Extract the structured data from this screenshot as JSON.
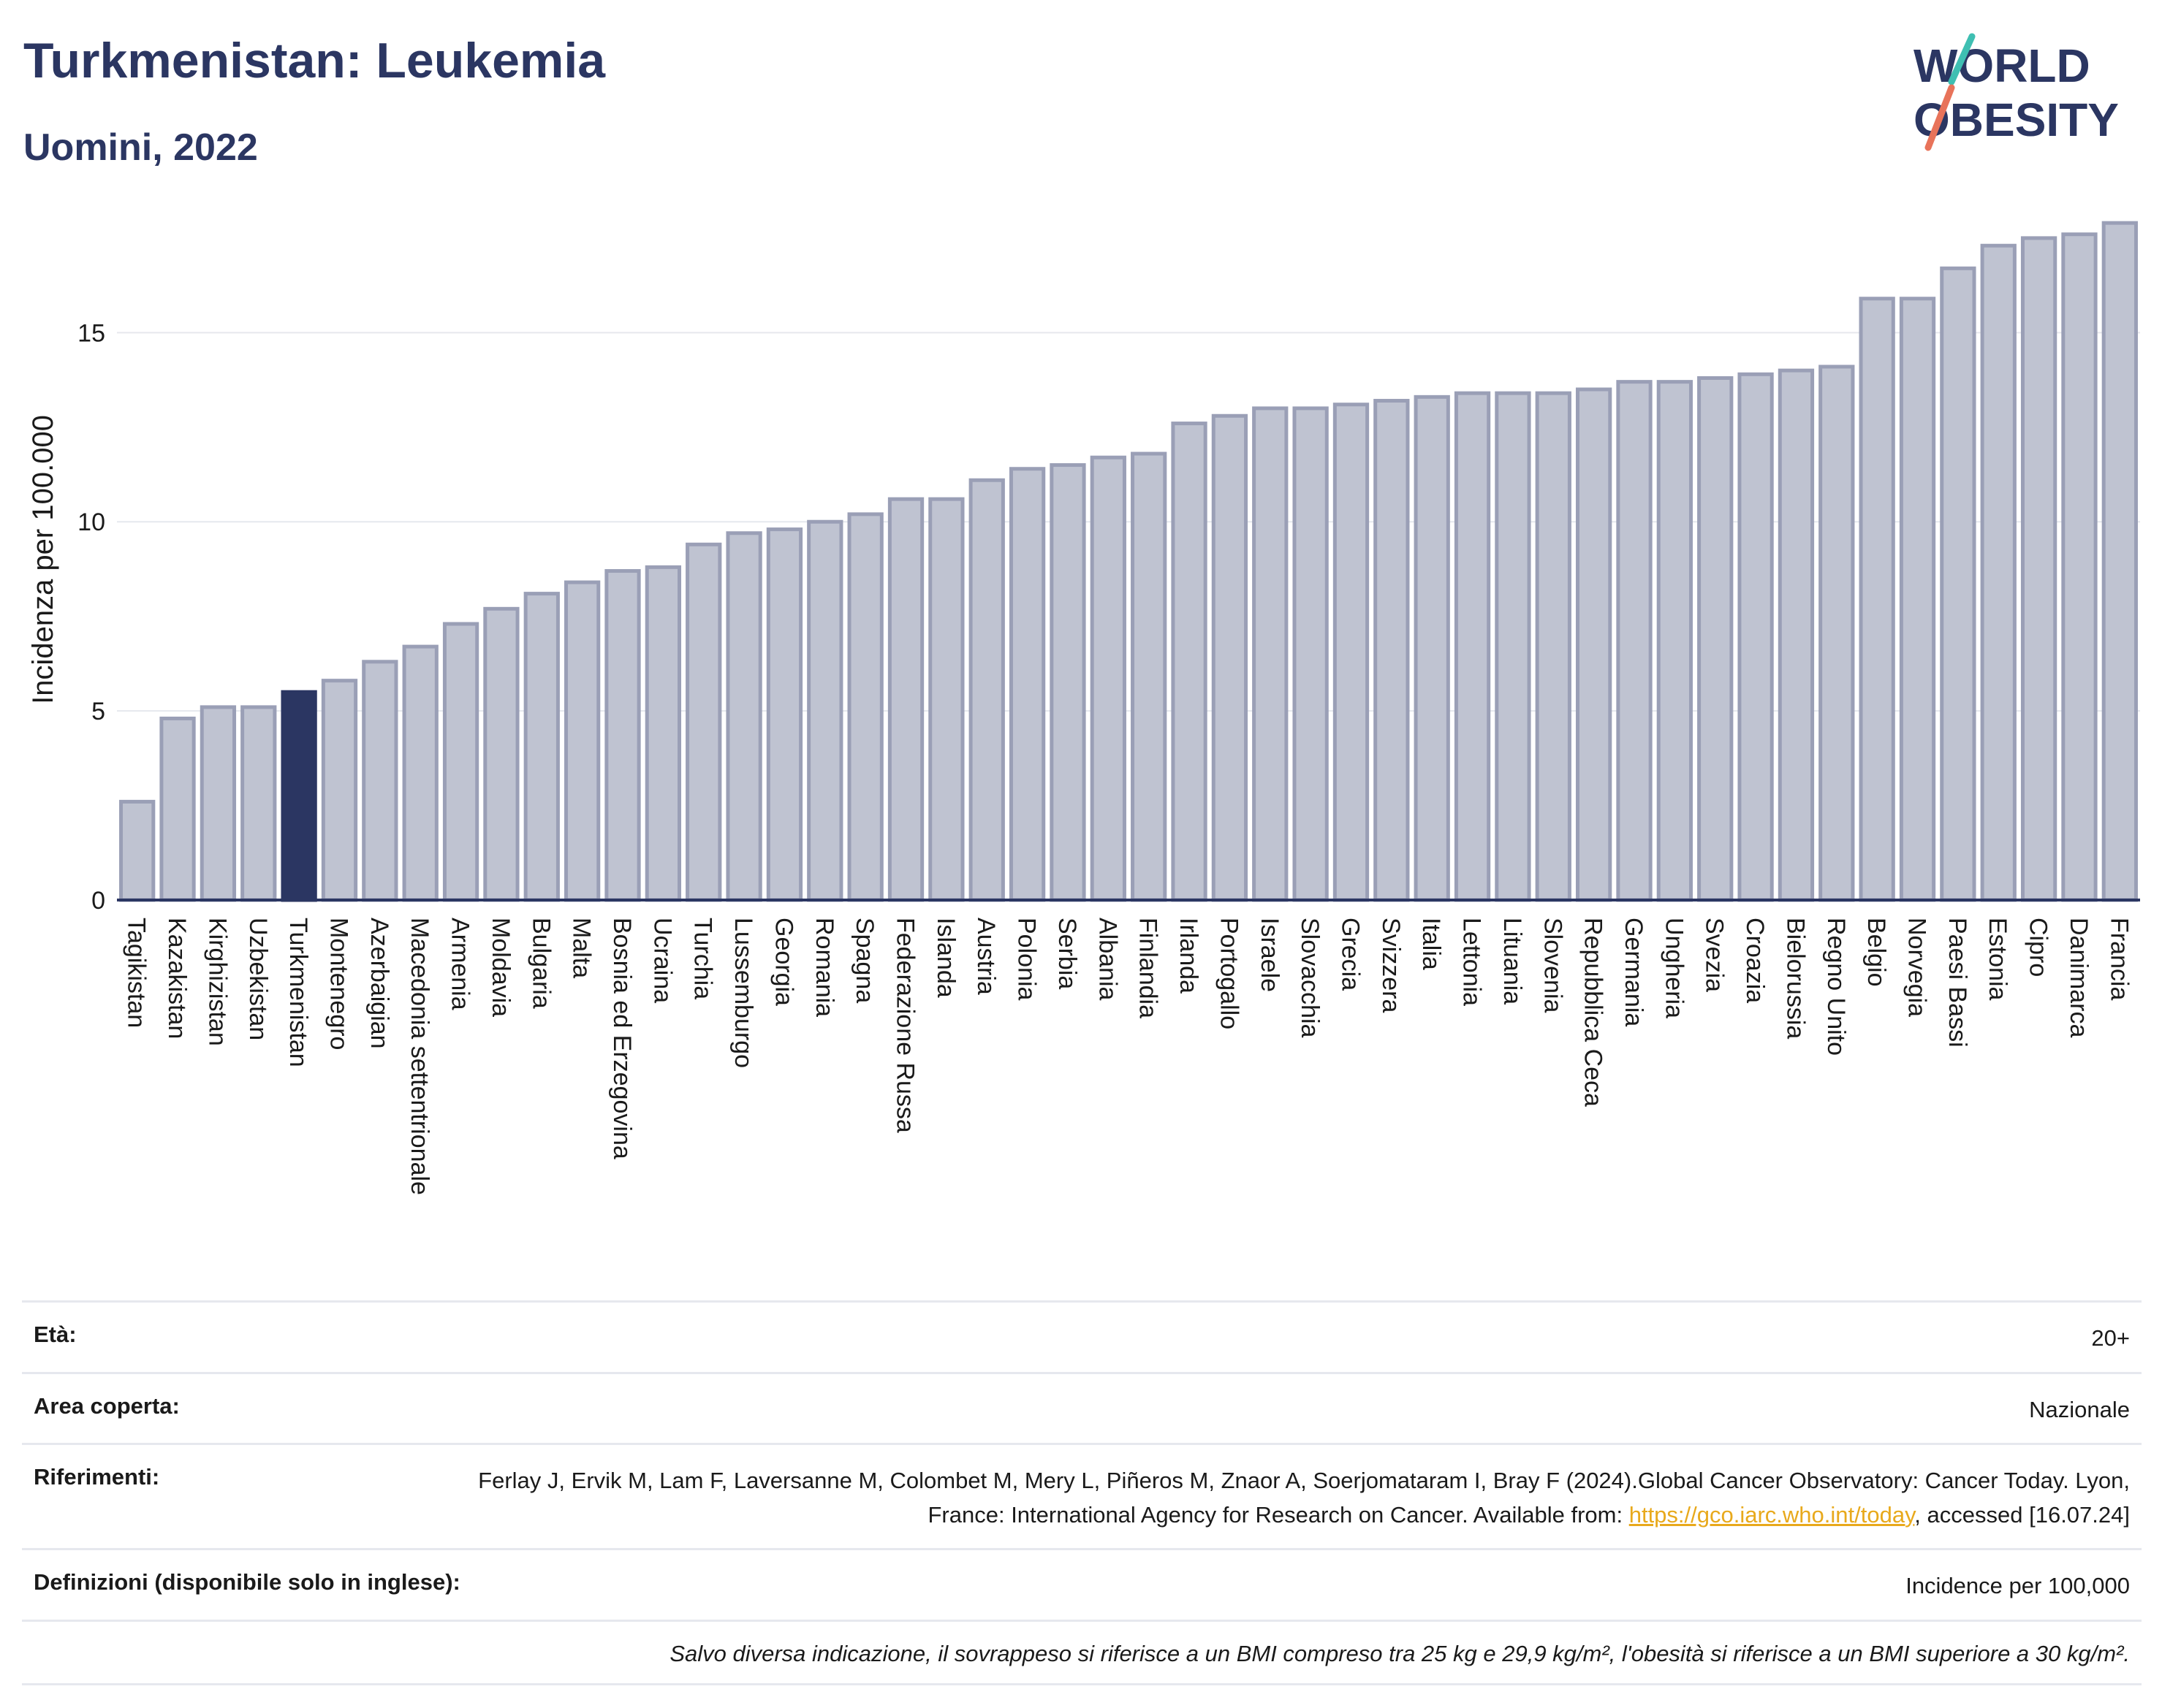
{
  "title": "Turkmenistan: Leukemia",
  "subtitle": "Uomini, 2022",
  "logo": {
    "line1": "WORLD",
    "line2": "OBESITY"
  },
  "colors": {
    "bar": "#bfc3d1",
    "bar_stroke": "#9a9fb6",
    "highlight": "#2b3662",
    "text": "#2b3662",
    "grid": "#e6e8ee",
    "link": "#e8a91c"
  },
  "chart_data": {
    "type": "bar",
    "ylabel": "Incidenza per 100.000",
    "ylim": [
      0,
      18
    ],
    "yticks": [
      0,
      5,
      10,
      15
    ],
    "highlight": "Turkmenistan",
    "grid": true,
    "categories": [
      "Tagikistan",
      "Kazakistan",
      "Kirghizistan",
      "Uzbekistan",
      "Turkmenistan",
      "Montenegro",
      "Azerbaigian",
      "Macedonia settentrionale",
      "Armenia",
      "Moldavia",
      "Bulgaria",
      "Malta",
      "Bosnia ed Erzegovina",
      "Ucraina",
      "Turchia",
      "Lussemburgo",
      "Georgia",
      "Romania",
      "Spagna",
      "Federazione Russa",
      "Islanda",
      "Austria",
      "Polonia",
      "Serbia",
      "Albania",
      "Finlandia",
      "Irlanda",
      "Portogallo",
      "Israele",
      "Slovacchia",
      "Grecia",
      "Svizzera",
      "Italia",
      "Lettonia",
      "Lituania",
      "Slovenia",
      "Repubblica Ceca",
      "Germania",
      "Ungheria",
      "Svezia",
      "Croazia",
      "Bielorussia",
      "Regno Unito",
      "Belgio",
      "Norvegia",
      "Paesi Bassi",
      "Estonia",
      "Cipro",
      "Danimarca",
      "Francia"
    ],
    "values": [
      2.6,
      4.8,
      5.1,
      5.1,
      5.5,
      5.8,
      6.3,
      6.7,
      7.3,
      7.7,
      8.1,
      8.4,
      8.7,
      8.8,
      9.4,
      9.7,
      9.8,
      10.0,
      10.2,
      10.6,
      10.6,
      11.1,
      11.4,
      11.5,
      11.7,
      11.8,
      12.6,
      12.8,
      13.0,
      13.0,
      13.1,
      13.2,
      13.3,
      13.4,
      13.4,
      13.4,
      13.5,
      13.7,
      13.7,
      13.8,
      13.9,
      14.0,
      14.1,
      15.9,
      15.9,
      16.7,
      17.3,
      17.5,
      17.6,
      17.9
    ]
  },
  "info": {
    "age_label": "Età:",
    "age_value": "20+",
    "area_label": "Area coperta:",
    "area_value": "Nazionale",
    "ref_label": "Riferimenti:",
    "ref_text1": "Ferlay J, Ervik M, Lam F, Laversanne M, Colombet M, Mery L, Piñeros M, Znaor A, Soerjomataram I, Bray F (2024).Global Cancer Observatory: Cancer Today. Lyon, France: International Agency for Research on Cancer. Available from: ",
    "ref_link": "https://gco.iarc.who.int/today",
    "ref_text2": ", accessed [16.07.24]",
    "def_label": "Definizioni (disponibile solo in inglese):",
    "def_value": "Incidence per 100,000",
    "note": "Salvo diversa indicazione, il sovrappeso si riferisce a un BMI compreso tra 25 kg e 29,9 kg/m², l'obesità si riferisce a un BMI superiore a 30 kg/m²."
  }
}
